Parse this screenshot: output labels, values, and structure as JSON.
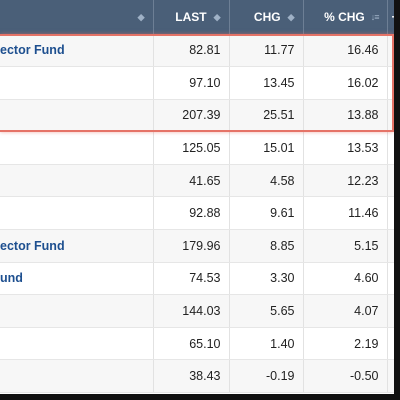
{
  "header": {
    "last": "LAST",
    "chg": "CHG",
    "pct_chg": "% CHG",
    "plus_minus": "+/"
  },
  "rows": [
    {
      "name": "ector Fund",
      "last": "82.81",
      "chg": "11.77",
      "pct": "16.46",
      "dir": "up"
    },
    {
      "name": "",
      "last": "97.10",
      "chg": "13.45",
      "pct": "16.02",
      "dir": "up"
    },
    {
      "name": "",
      "last": "207.39",
      "chg": "25.51",
      "pct": "13.88",
      "dir": "up"
    },
    {
      "name": "",
      "last": "125.05",
      "chg": "15.01",
      "pct": "13.53",
      "dir": "up"
    },
    {
      "name": "",
      "last": "41.65",
      "chg": "4.58",
      "pct": "12.23",
      "dir": "up"
    },
    {
      "name": "",
      "last": "92.88",
      "chg": "9.61",
      "pct": "11.46",
      "dir": "up"
    },
    {
      "name": "ector Fund",
      "last": "179.96",
      "chg": "8.85",
      "pct": "5.15",
      "dir": "up"
    },
    {
      "name": "und",
      "last": "74.53",
      "chg": "3.30",
      "pct": "4.60",
      "dir": "up"
    },
    {
      "name": "",
      "last": "144.03",
      "chg": "5.65",
      "pct": "4.07",
      "dir": "up"
    },
    {
      "name": "",
      "last": "65.10",
      "chg": "1.40",
      "pct": "2.19",
      "dir": "up"
    },
    {
      "name": "",
      "last": "38.43",
      "chg": "-0.19",
      "pct": "-0.50",
      "dir": "down"
    }
  ],
  "colors": {
    "header_bg": "#4a5f78",
    "fund_link": "#1d4f8f",
    "up": "#22b14c",
    "down": "#d62828",
    "highlight_border": "#e57367"
  },
  "icons": {
    "sort": "sort-updown-icon",
    "sort_desc": "sort-desc-icon"
  }
}
